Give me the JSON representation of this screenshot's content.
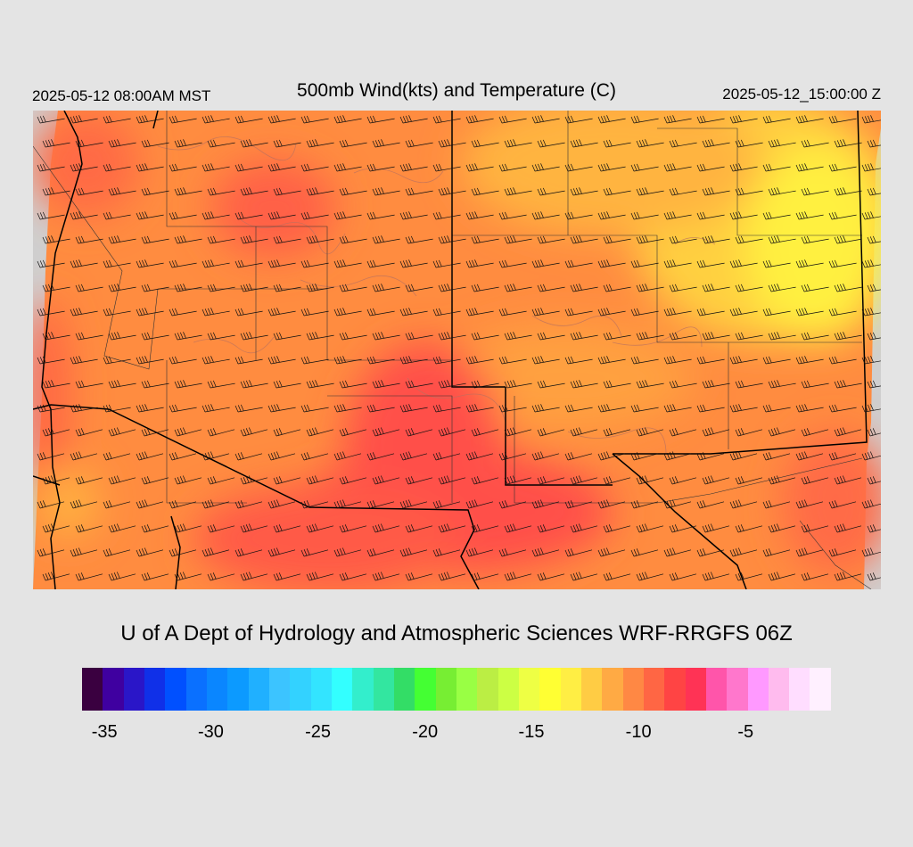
{
  "header": {
    "local_time": "2025-05-12 08:00AM MST",
    "title": "500mb Wind(kts) and Temperature (C)",
    "valid_time": "2025-05-12_15:00:00 Z"
  },
  "credit": "U of A Dept of Hydrology and Atmospheric Sciences WRF-RRGFS 06Z",
  "colorbar": {
    "colors": [
      "#3a0040",
      "#3f00a0",
      "#2a16c8",
      "#1030e8",
      "#0050ff",
      "#0a70ff",
      "#0a86ff",
      "#0c9aff",
      "#20b0ff",
      "#3cc4ff",
      "#33d2ff",
      "#33e4ff",
      "#33ffff",
      "#33eecc",
      "#33e6a0",
      "#33dd66",
      "#44ff33",
      "#77ee33",
      "#99ff44",
      "#bbee44",
      "#ccff44",
      "#eeff44",
      "#ffff33",
      "#ffee44",
      "#ffcc44",
      "#ffaa44",
      "#ff8844",
      "#ff6644",
      "#ff4444",
      "#ff3355",
      "#ff55aa",
      "#ff77cc",
      "#ff99ff",
      "#ffbbee",
      "#ffddff",
      "#fff0ff"
    ],
    "ticks": [
      "-35",
      "-30",
      "-25",
      "-20",
      "-15",
      "-10",
      "-5"
    ],
    "tick_positions": [
      0.03,
      0.172,
      0.315,
      0.458,
      0.6,
      0.743,
      0.886
    ]
  },
  "map": {
    "field": "500mb temperature (C)",
    "temperature_range": [
      -13,
      -7
    ],
    "wind_direction": "west-southwest",
    "wind_speed_range_kts": [
      30,
      60
    ]
  }
}
